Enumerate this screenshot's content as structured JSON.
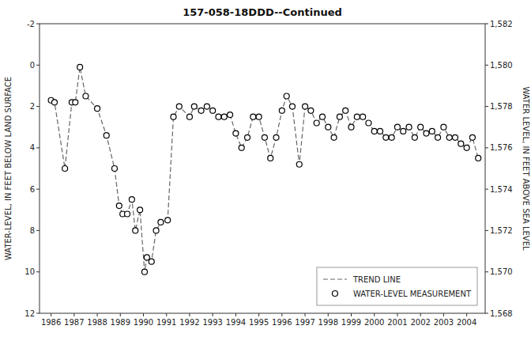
{
  "chart_data": {
    "type": "line",
    "title": "157-058-18DDD--Continued",
    "y_label": "WATER-LEVEL, IN FEET BELOW LAND SURFACE",
    "y2_label": "WATER LEVEL, IN FEET ABOVE SEA LEVEL",
    "x": [
      1986.0,
      1986.15,
      1986.6,
      1986.9,
      1987.05,
      1987.25,
      1987.5,
      1988.0,
      1988.4,
      1988.75,
      1988.95,
      1989.1,
      1989.3,
      1989.5,
      1989.65,
      1989.85,
      1990.05,
      1990.15,
      1990.35,
      1990.55,
      1990.75,
      1991.05,
      1991.3,
      1991.55,
      1992.0,
      1992.2,
      1992.5,
      1992.75,
      1993.0,
      1993.25,
      1993.5,
      1993.75,
      1994.0,
      1994.25,
      1994.5,
      1994.75,
      1995.0,
      1995.25,
      1995.5,
      1995.75,
      1996.0,
      1996.2,
      1996.45,
      1996.75,
      1997.0,
      1997.25,
      1997.5,
      1997.75,
      1998.0,
      1998.25,
      1998.5,
      1998.75,
      1999.0,
      1999.25,
      1999.5,
      1999.75,
      2000.0,
      2000.25,
      2000.5,
      2000.75,
      2001.0,
      2001.25,
      2001.5,
      2001.75,
      2002.0,
      2002.25,
      2002.5,
      2002.75,
      2003.0,
      2003.25,
      2003.5,
      2003.75,
      2004.0,
      2004.25,
      2004.5
    ],
    "series": [
      {
        "name": "TREND LINE",
        "type": "line",
        "line_style": "dashed",
        "color": "#666666",
        "values": [
          1.7,
          1.8,
          5.0,
          1.8,
          1.8,
          0.1,
          1.5,
          2.1,
          3.4,
          5.0,
          6.8,
          7.2,
          7.2,
          6.5,
          8.0,
          7.0,
          10.0,
          9.3,
          9.5,
          8.0,
          7.6,
          7.5,
          2.5,
          2.0,
          2.5,
          2.0,
          2.2,
          2.0,
          2.2,
          2.5,
          2.5,
          2.4,
          3.3,
          4.0,
          3.5,
          2.5,
          2.5,
          3.5,
          4.5,
          3.5,
          2.2,
          1.5,
          2.0,
          4.8,
          2.0,
          2.2,
          2.8,
          2.5,
          3.0,
          3.5,
          2.5,
          2.2,
          3.0,
          2.5,
          2.5,
          2.8,
          3.2,
          3.2,
          3.5,
          3.5,
          3.0,
          3.2,
          3.0,
          3.5,
          3.0,
          3.3,
          3.2,
          3.5,
          3.0,
          3.5,
          3.5,
          3.8,
          4.0,
          3.5,
          4.5
        ]
      },
      {
        "name": "WATER-LEVEL MEASUREMENT",
        "type": "scatter",
        "marker": "circle",
        "color": "#000000",
        "values": [
          1.7,
          1.8,
          5.0,
          1.8,
          1.8,
          0.1,
          1.5,
          2.1,
          3.4,
          5.0,
          6.8,
          7.2,
          7.2,
          6.5,
          8.0,
          7.0,
          10.0,
          9.3,
          9.5,
          8.0,
          7.6,
          7.5,
          2.5,
          2.0,
          2.5,
          2.0,
          2.2,
          2.0,
          2.2,
          2.5,
          2.5,
          2.4,
          3.3,
          4.0,
          3.5,
          2.5,
          2.5,
          3.5,
          4.5,
          3.5,
          2.2,
          1.5,
          2.0,
          4.8,
          2.0,
          2.2,
          2.8,
          2.5,
          3.0,
          3.5,
          2.5,
          2.2,
          3.0,
          2.5,
          2.5,
          2.8,
          3.2,
          3.2,
          3.5,
          3.5,
          3.0,
          3.2,
          3.0,
          3.5,
          3.0,
          3.3,
          3.2,
          3.5,
          3.0,
          3.5,
          3.5,
          3.8,
          4.0,
          3.5,
          4.5
        ]
      }
    ],
    "xlim": [
      1985.5,
      2004.8
    ],
    "xticks": [
      1986,
      1987,
      1988,
      1989,
      1990,
      1991,
      1992,
      1993,
      1994,
      1995,
      1996,
      1997,
      1998,
      1999,
      2000,
      2001,
      2002,
      2003,
      2004
    ],
    "ylim": [
      12,
      -2
    ],
    "yticks": [
      -2,
      0,
      2,
      4,
      6,
      8,
      10,
      12
    ],
    "y2lim": [
      1568,
      1582
    ],
    "y2ticks": [
      {
        "value": 1568,
        "label": "1,568"
      },
      {
        "value": 1570,
        "label": "1,570"
      },
      {
        "value": 1572,
        "label": "1,572"
      },
      {
        "value": 1574,
        "label": "1,574"
      },
      {
        "value": 1576,
        "label": "1,576"
      },
      {
        "value": 1578,
        "label": "1,578"
      },
      {
        "value": 1580,
        "label": "1,580"
      },
      {
        "value": 1582,
        "label": "1,582"
      }
    ],
    "grid": false,
    "legend": "lower right"
  }
}
